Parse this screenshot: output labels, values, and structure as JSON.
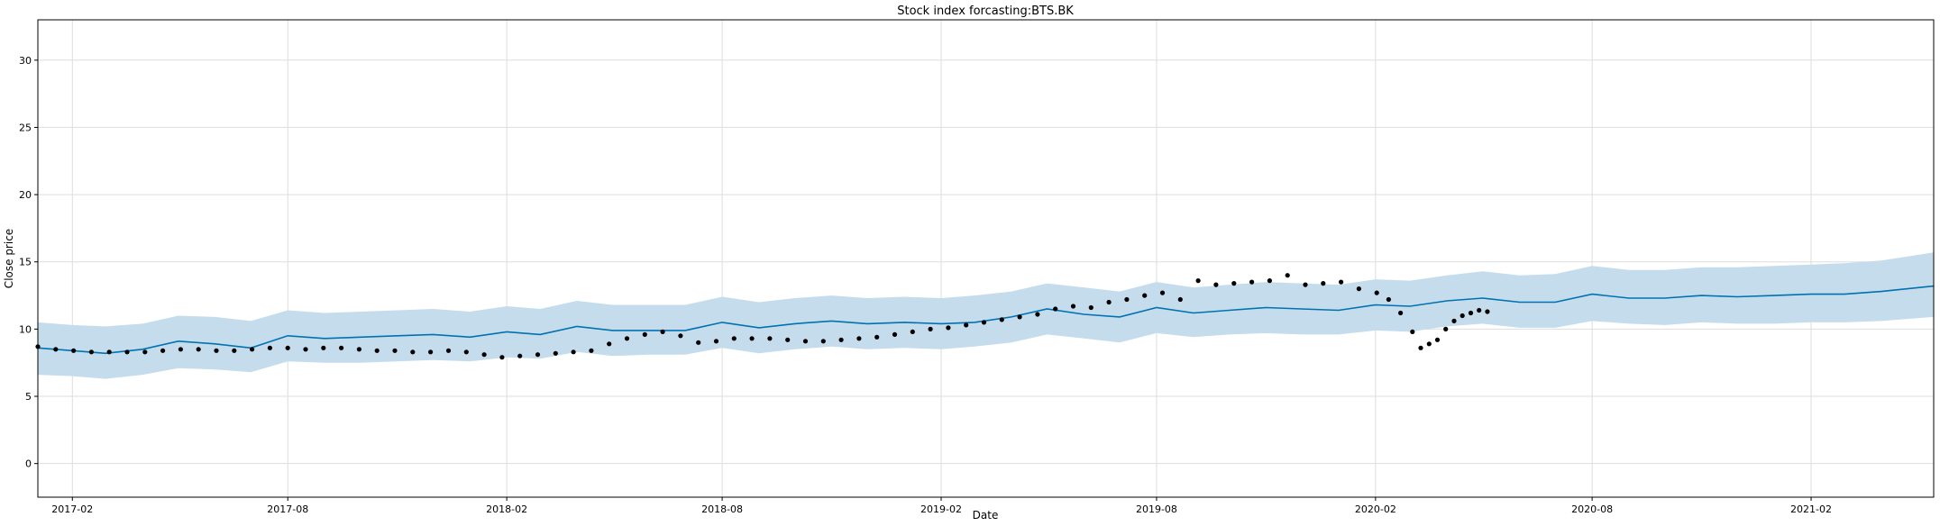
{
  "chart_data": {
    "type": "line",
    "title": "Stock index forcasting:BTS.BK",
    "xlabel": "Date",
    "ylabel": "Close price",
    "xlim": [
      "2017-01-03",
      "2021-05-15"
    ],
    "ylim": [
      -2.5,
      33
    ],
    "grid": true,
    "x_ticks": [
      "2017-02",
      "2017-08",
      "2018-02",
      "2018-08",
      "2019-02",
      "2019-08",
      "2020-02",
      "2020-08",
      "2021-02"
    ],
    "y_ticks": [
      0,
      5,
      10,
      15,
      20,
      25,
      30
    ],
    "colors": {
      "forecast": "#0072B2",
      "band": "#c5dced",
      "observed": "#000000"
    },
    "series": [
      {
        "kind": "forecast",
        "x": [
          "2017-01-03",
          "2017-02-01",
          "2017-03-01",
          "2017-04-01",
          "2017-05-01",
          "2017-06-01",
          "2017-07-01",
          "2017-08-01",
          "2017-09-01",
          "2017-10-01",
          "2017-11-01",
          "2017-12-01",
          "2018-01-01",
          "2018-02-01",
          "2018-03-01",
          "2018-04-01",
          "2018-05-01",
          "2018-06-01",
          "2018-07-01",
          "2018-08-01",
          "2018-09-01",
          "2018-10-01",
          "2018-11-01",
          "2018-12-01",
          "2019-01-01",
          "2019-02-01",
          "2019-03-01",
          "2019-04-01",
          "2019-05-01",
          "2019-06-01",
          "2019-07-01",
          "2019-08-01",
          "2019-09-01",
          "2019-10-01",
          "2019-11-01",
          "2019-12-01",
          "2020-01-01",
          "2020-02-01",
          "2020-03-01",
          "2020-04-01",
          "2020-05-01",
          "2020-06-01",
          "2020-07-01",
          "2020-08-01",
          "2020-09-01",
          "2020-10-01",
          "2020-11-01",
          "2020-12-01",
          "2021-01-01",
          "2021-02-01",
          "2021-03-01",
          "2021-04-01",
          "2021-05-15"
        ],
        "y": [
          8.6,
          8.4,
          8.2,
          8.5,
          9.1,
          8.9,
          8.6,
          9.5,
          9.3,
          9.4,
          9.5,
          9.6,
          9.4,
          9.8,
          9.6,
          10.2,
          9.9,
          9.9,
          9.9,
          10.5,
          10.1,
          10.4,
          10.6,
          10.4,
          10.5,
          10.4,
          10.5,
          10.9,
          11.5,
          11.1,
          10.9,
          11.6,
          11.2,
          11.4,
          11.6,
          11.5,
          11.4,
          11.8,
          11.7,
          12.1,
          12.3,
          12.0,
          12.0,
          12.6,
          12.3,
          12.3,
          12.5,
          12.4,
          12.5,
          12.6,
          12.6,
          12.8,
          13.2
        ],
        "lower": [
          6.6,
          6.5,
          6.3,
          6.6,
          7.1,
          7.0,
          6.8,
          7.6,
          7.5,
          7.5,
          7.6,
          7.7,
          7.6,
          7.9,
          7.8,
          8.3,
          8.0,
          8.1,
          8.1,
          8.6,
          8.2,
          8.5,
          8.7,
          8.5,
          8.6,
          8.5,
          8.7,
          9.0,
          9.6,
          9.3,
          9.0,
          9.7,
          9.4,
          9.6,
          9.7,
          9.6,
          9.6,
          9.9,
          9.8,
          10.2,
          10.4,
          10.1,
          10.1,
          10.6,
          10.4,
          10.3,
          10.5,
          10.4,
          10.4,
          10.5,
          10.5,
          10.6,
          10.9
        ],
        "upper": [
          10.5,
          10.3,
          10.2,
          10.4,
          11.0,
          10.9,
          10.6,
          11.4,
          11.2,
          11.3,
          11.4,
          11.5,
          11.3,
          11.7,
          11.5,
          12.1,
          11.8,
          11.8,
          11.8,
          12.4,
          12.0,
          12.3,
          12.5,
          12.3,
          12.4,
          12.3,
          12.5,
          12.8,
          13.4,
          13.1,
          12.8,
          13.5,
          13.1,
          13.3,
          13.5,
          13.4,
          13.3,
          13.7,
          13.6,
          14.0,
          14.3,
          14.0,
          14.1,
          14.7,
          14.4,
          14.4,
          14.6,
          14.6,
          14.7,
          14.8,
          14.9,
          15.1,
          15.7
        ]
      },
      {
        "kind": "observed",
        "x": [
          "2017-01-03",
          "2017-01-18",
          "2017-02-02",
          "2017-02-17",
          "2017-03-04",
          "2017-03-19",
          "2017-04-03",
          "2017-04-18",
          "2017-05-03",
          "2017-05-18",
          "2017-06-02",
          "2017-06-17",
          "2017-07-02",
          "2017-07-17",
          "2017-08-01",
          "2017-08-16",
          "2017-08-31",
          "2017-09-15",
          "2017-09-30",
          "2017-10-15",
          "2017-10-30",
          "2017-11-14",
          "2017-11-29",
          "2017-12-14",
          "2017-12-29",
          "2018-01-13",
          "2018-01-28",
          "2018-02-12",
          "2018-02-27",
          "2018-03-14",
          "2018-03-29",
          "2018-04-13",
          "2018-04-28",
          "2018-05-13",
          "2018-05-28",
          "2018-06-12",
          "2018-06-27",
          "2018-07-12",
          "2018-07-27",
          "2018-08-11",
          "2018-08-26",
          "2018-09-10",
          "2018-09-25",
          "2018-10-10",
          "2018-10-25",
          "2018-11-09",
          "2018-11-24",
          "2018-12-09",
          "2018-12-24",
          "2019-01-08",
          "2019-01-23",
          "2019-02-07",
          "2019-02-22",
          "2019-03-09",
          "2019-03-24",
          "2019-04-08",
          "2019-04-23",
          "2019-05-08",
          "2019-05-23",
          "2019-06-07",
          "2019-06-22",
          "2019-07-07",
          "2019-07-22",
          "2019-08-06",
          "2019-08-21",
          "2019-09-05",
          "2019-09-20",
          "2019-10-05",
          "2019-10-20",
          "2019-11-04",
          "2019-11-19",
          "2019-12-04",
          "2019-12-19",
          "2020-01-03",
          "2020-01-18",
          "2020-02-02",
          "2020-02-12",
          "2020-02-22",
          "2020-03-03",
          "2020-03-10",
          "2020-03-17",
          "2020-03-24",
          "2020-03-31",
          "2020-04-07",
          "2020-04-14",
          "2020-04-21",
          "2020-04-28",
          "2020-05-05"
        ],
        "y": [
          8.7,
          8.5,
          8.4,
          8.3,
          8.3,
          8.3,
          8.3,
          8.4,
          8.5,
          8.5,
          8.4,
          8.4,
          8.5,
          8.6,
          8.6,
          8.5,
          8.6,
          8.6,
          8.5,
          8.4,
          8.4,
          8.3,
          8.3,
          8.4,
          8.3,
          8.1,
          7.9,
          8.0,
          8.1,
          8.2,
          8.3,
          8.4,
          8.9,
          9.3,
          9.6,
          9.8,
          9.5,
          9.0,
          9.1,
          9.3,
          9.3,
          9.3,
          9.2,
          9.1,
          9.1,
          9.2,
          9.3,
          9.4,
          9.6,
          9.8,
          10.0,
          10.1,
          10.3,
          10.5,
          10.7,
          10.9,
          11.1,
          11.5,
          11.7,
          11.6,
          12.0,
          12.2,
          12.5,
          12.7,
          12.2,
          13.6,
          13.3,
          13.4,
          13.5,
          13.6,
          14.0,
          13.3,
          13.4,
          13.5,
          13.0,
          12.7,
          12.2,
          11.2,
          9.8,
          8.6,
          8.9,
          9.2,
          10.0,
          10.6,
          11.0,
          11.2,
          11.4,
          11.3
        ]
      }
    ]
  }
}
